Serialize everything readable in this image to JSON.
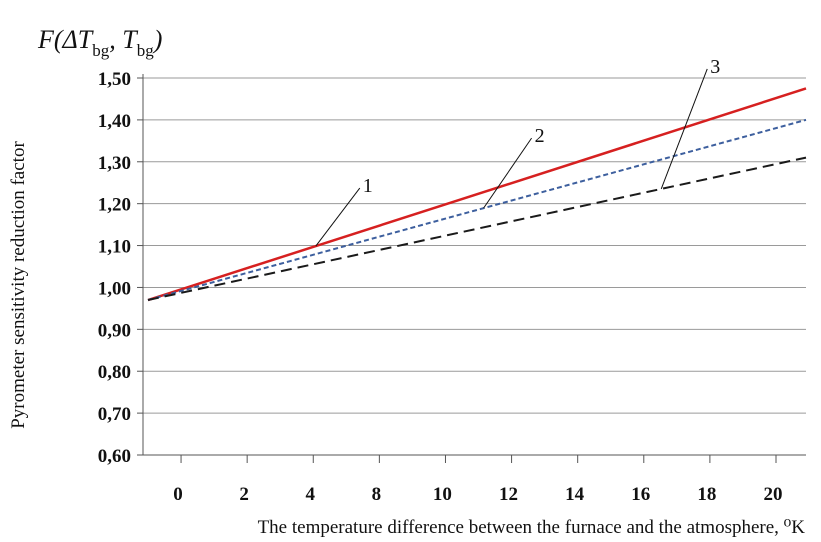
{
  "chart_data": {
    "type": "line",
    "title": {
      "main": "F(ΔT",
      "sub1": "bg",
      "mid": ", T",
      "sub2": "bg",
      "end": ")"
    },
    "ylabel": "Pyrometer sensitivity reduction factor",
    "xlabel": "The temperature difference between the furnace and the atmosphere, ⁰K",
    "x_ticks": [
      "0",
      "2",
      "4",
      "8",
      "10",
      "12",
      "14",
      "16",
      "18",
      "20"
    ],
    "y_ticks": [
      "0,60",
      "0,70",
      "0,80",
      "0,90",
      "1,00",
      "1,10",
      "1,20",
      "1,30",
      "1,40",
      "1,50"
    ],
    "ylim": [
      0.6,
      1.5
    ],
    "grid": true,
    "series": [
      {
        "name": "1",
        "color": "#d62020",
        "style": "solid",
        "x": [
          0,
          10
        ],
        "y": [
          0.97,
          1.475
        ]
      },
      {
        "name": "2",
        "color": "#3d5f9e",
        "style": "dotted",
        "x": [
          0,
          10
        ],
        "y": [
          0.97,
          1.4
        ]
      },
      {
        "name": "3",
        "color": "#1a1a1a",
        "style": "dashed",
        "x": [
          0,
          10
        ],
        "y": [
          0.97,
          1.31
        ]
      }
    ],
    "series_labels": [
      {
        "text": "1",
        "series": "1",
        "at_x": 2.55
      },
      {
        "text": "2",
        "series": "2",
        "at_x": 5.1
      },
      {
        "text": "3",
        "series": "3",
        "at_x": 7.8
      }
    ]
  }
}
